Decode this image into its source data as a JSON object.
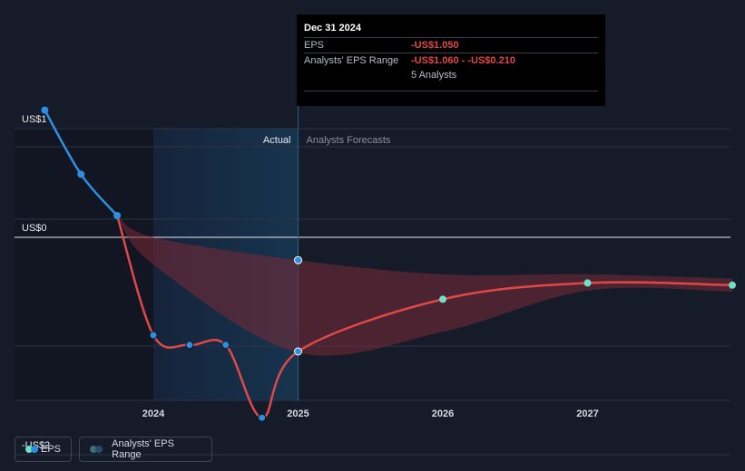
{
  "chart_data": {
    "type": "line",
    "ylim": [
      -2.1,
      1.2
    ],
    "y_ticks": [
      {
        "value": 1,
        "label": "US$1"
      },
      {
        "value": 0,
        "label": "US$0"
      },
      {
        "value": -2,
        "label": "-US$2"
      }
    ],
    "x_ticks": [
      {
        "value": 2024,
        "label": "2024"
      },
      {
        "value": 2025,
        "label": "2025"
      },
      {
        "value": 2026,
        "label": "2026"
      },
      {
        "value": 2027,
        "label": "2027"
      }
    ],
    "regions": {
      "actual_label": "Actual",
      "forecast_label": "Analysts Forecasts"
    },
    "series": [
      {
        "name": "EPS",
        "points": [
          {
            "x": 2023.75,
            "y": 0.2
          },
          {
            "x": 2024.0,
            "y": -0.9
          },
          {
            "x": 2024.25,
            "y": -0.99
          },
          {
            "x": 2024.5,
            "y": -0.99
          },
          {
            "x": 2024.75,
            "y": -1.66
          },
          {
            "x": 2025.0,
            "y": -1.05
          },
          {
            "x": 2026.0,
            "y": -0.57
          },
          {
            "x": 2027.0,
            "y": -0.42
          },
          {
            "x": 2028.0,
            "y": -0.44
          }
        ]
      },
      {
        "name": "EPS",
        "points": [
          {
            "x": 2023.25,
            "y": 1.17
          },
          {
            "x": 2023.5,
            "y": 0.58
          },
          {
            "x": 2023.75,
            "y": 0.2
          }
        ]
      }
    ],
    "range": {
      "name": "Analysts' EPS Range",
      "upper": [
        {
          "x": 2023.75,
          "y": 0.2
        },
        {
          "x": 2024.0,
          "y": 0.0
        },
        {
          "x": 2025.0,
          "y": -0.21
        },
        {
          "x": 2026.0,
          "y": -0.34
        },
        {
          "x": 2027.0,
          "y": -0.34
        },
        {
          "x": 2028.0,
          "y": -0.38
        }
      ],
      "lower": [
        {
          "x": 2023.75,
          "y": 0.2
        },
        {
          "x": 2024.0,
          "y": -0.25
        },
        {
          "x": 2025.0,
          "y": -1.06
        },
        {
          "x": 2026.0,
          "y": -0.87
        },
        {
          "x": 2027.0,
          "y": -0.49
        },
        {
          "x": 2028.0,
          "y": -0.5
        }
      ]
    },
    "highlight": {
      "x": 2025.0,
      "y": -0.21
    }
  },
  "tooltip": {
    "date": "Dec 31 2024",
    "eps_label": "EPS",
    "eps_value": "-US$1.050",
    "range_label": "Analysts' EPS Range",
    "range_value": "-US$1.060 - -US$0.210",
    "analysts": "5 Analysts"
  },
  "legend": {
    "eps_label": "EPS",
    "range_label": "Analysts' EPS Range"
  },
  "colors": {
    "background": "#151b29",
    "actual_line": "#2e8fe0",
    "forecast_line": "#e04848",
    "range_fill": "#7a2a36",
    "forecast_dot": "#6ee0c8",
    "grid": "#2c3342"
  }
}
